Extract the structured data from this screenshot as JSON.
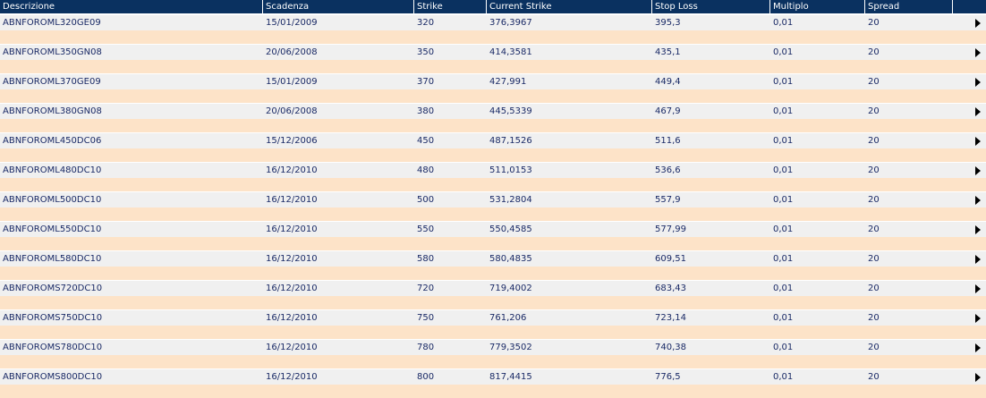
{
  "headers": [
    "Descrizione",
    "Scadenza",
    "Strike",
    "Current Strike",
    "Stop Loss",
    "Multiplo",
    "Spread",
    ""
  ],
  "rows": [
    {
      "descrizione": "ABNFOROML320GE09",
      "scadenza": "15/01/2009",
      "strike": "320",
      "current_strike": "376,3967",
      "stop_loss": "395,3",
      "multiplo": "0,01",
      "spread": "20"
    },
    {
      "descrizione": "ABNFOROML350GN08",
      "scadenza": "20/06/2008",
      "strike": "350",
      "current_strike": "414,3581",
      "stop_loss": "435,1",
      "multiplo": "0,01",
      "spread": "20"
    },
    {
      "descrizione": "ABNFOROML370GE09",
      "scadenza": "15/01/2009",
      "strike": "370",
      "current_strike": "427,991",
      "stop_loss": "449,4",
      "multiplo": "0,01",
      "spread": "20"
    },
    {
      "descrizione": "ABNFOROML380GN08",
      "scadenza": "20/06/2008",
      "strike": "380",
      "current_strike": "445,5339",
      "stop_loss": "467,9",
      "multiplo": "0,01",
      "spread": "20"
    },
    {
      "descrizione": "ABNFOROML450DC06",
      "scadenza": "15/12/2006",
      "strike": "450",
      "current_strike": "487,1526",
      "stop_loss": "511,6",
      "multiplo": "0,01",
      "spread": "20"
    },
    {
      "descrizione": "ABNFOROML480DC10",
      "scadenza": "16/12/2010",
      "strike": "480",
      "current_strike": "511,0153",
      "stop_loss": "536,6",
      "multiplo": "0,01",
      "spread": "20"
    },
    {
      "descrizione": "ABNFOROML500DC10",
      "scadenza": "16/12/2010",
      "strike": "500",
      "current_strike": "531,2804",
      "stop_loss": "557,9",
      "multiplo": "0,01",
      "spread": "20"
    },
    {
      "descrizione": "ABNFOROML550DC10",
      "scadenza": "16/12/2010",
      "strike": "550",
      "current_strike": "550,4585",
      "stop_loss": "577,99",
      "multiplo": "0,01",
      "spread": "20"
    },
    {
      "descrizione": "ABNFOROML580DC10",
      "scadenza": "16/12/2010",
      "strike": "580",
      "current_strike": "580,4835",
      "stop_loss": "609,51",
      "multiplo": "0,01",
      "spread": "20"
    },
    {
      "descrizione": "ABNFOROMS720DC10",
      "scadenza": "16/12/2010",
      "strike": "720",
      "current_strike": "719,4002",
      "stop_loss": "683,43",
      "multiplo": "0,01",
      "spread": "20"
    },
    {
      "descrizione": "ABNFOROMS750DC10",
      "scadenza": "16/12/2010",
      "strike": "750",
      "current_strike": "761,206",
      "stop_loss": "723,14",
      "multiplo": "0,01",
      "spread": "20"
    },
    {
      "descrizione": "ABNFOROMS780DC10",
      "scadenza": "16/12/2010",
      "strike": "780",
      "current_strike": "779,3502",
      "stop_loss": "740,38",
      "multiplo": "0,01",
      "spread": "20"
    },
    {
      "descrizione": "ABNFOROMS800DC10",
      "scadenza": "16/12/2010",
      "strike": "800",
      "current_strike": "817,4415",
      "stop_loss": "776,5",
      "multiplo": "0,01",
      "spread": "20"
    }
  ],
  "row_action_icon": "play-arrow-icon",
  "colors": {
    "header_bg": "#0a3160",
    "row_bg": "#f0f0f0",
    "separator_bg": "#fde3c8",
    "text": "#1a2a66"
  }
}
